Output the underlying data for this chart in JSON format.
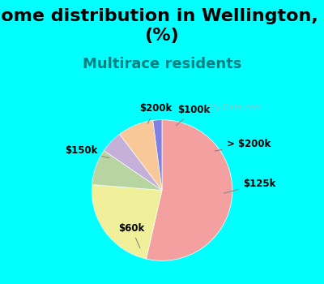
{
  "title": "Income distribution in Wellington, CO\n(%)",
  "subtitle": "Multirace residents",
  "watermark": "City-Data.com",
  "labels": [
    "$60k",
    "$125k",
    "> $200k",
    "$100k",
    "$200k",
    "$150k"
  ],
  "sizes": [
    52,
    22,
    8,
    5,
    8,
    2
  ],
  "colors": [
    "#F4A0A0",
    "#F0F09A",
    "#B8D4A0",
    "#C4B0D8",
    "#F8C898",
    "#8080E0"
  ],
  "label_colors": [
    "#000000",
    "#000000",
    "#000000",
    "#000000",
    "#000000",
    "#000000"
  ],
  "startangle": 90,
  "background_top": "#00FFFF",
  "background_chart": "#E8F5E8",
  "title_fontsize": 16,
  "subtitle_color": "#008080",
  "subtitle_fontsize": 13
}
